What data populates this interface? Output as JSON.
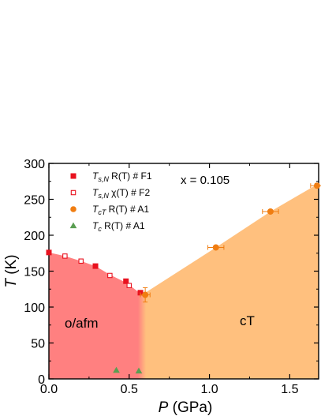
{
  "chart_data": {
    "type": "scatter",
    "xlabel": "P (GPa)",
    "ylabel": "T (K)",
    "xlim": [
      0.0,
      1.68
    ],
    "ylim": [
      0,
      300
    ],
    "xticks": [
      "0.0",
      "0.5",
      "1.0",
      "1.5"
    ],
    "yticks": [
      "0",
      "50",
      "100",
      "150",
      "200",
      "250",
      "300"
    ],
    "grid": false,
    "legend_position": "top-left",
    "annotations": {
      "composition": "x = 0.105",
      "phase_left": "o/afm",
      "phase_right": "cT"
    },
    "phase_regions": [
      {
        "name": "o/afm",
        "color": "#ff8080"
      },
      {
        "name": "cT",
        "color": "#ffc07e"
      }
    ],
    "series": [
      {
        "name": "T_s,N R(T) # F1",
        "label_parts": {
          "main": "T",
          "sub": "s,N",
          "rest": " R(T) # F1"
        },
        "marker": "filled-square",
        "color": "#e8121f",
        "points": [
          [
            0.0,
            176
          ],
          [
            0.29,
            157
          ],
          [
            0.48,
            136
          ],
          [
            0.57,
            120
          ]
        ]
      },
      {
        "name": "T_s,N χ(T) # F2",
        "label_parts": {
          "main": "T",
          "sub": "s,N",
          "rest": " χ(T) # F2"
        },
        "marker": "open-square",
        "color": "#e8121f",
        "points": [
          [
            0.1,
            171
          ],
          [
            0.2,
            164
          ],
          [
            0.38,
            144
          ],
          [
            0.5,
            130
          ]
        ]
      },
      {
        "name": "T_cT R(T) # A1",
        "label_parts": {
          "main": "T",
          "sub": "cT",
          "rest": " R(T) # A1"
        },
        "marker": "filled-circle",
        "color": "#f07d11",
        "points": [
          [
            0.6,
            117,
            0.03,
            10
          ],
          [
            1.04,
            183,
            0.05,
            0
          ],
          [
            1.38,
            233,
            0.05,
            0
          ],
          [
            1.67,
            269,
            0.04,
            3
          ]
        ]
      },
      {
        "name": "T_c R(T) # A1",
        "label_parts": {
          "main": "T",
          "sub": "c",
          "rest": " R(T) # A1"
        },
        "marker": "filled-triangle",
        "color": "#5a9e52",
        "points": [
          [
            0.42,
            12
          ],
          [
            0.56,
            11
          ]
        ]
      }
    ]
  }
}
